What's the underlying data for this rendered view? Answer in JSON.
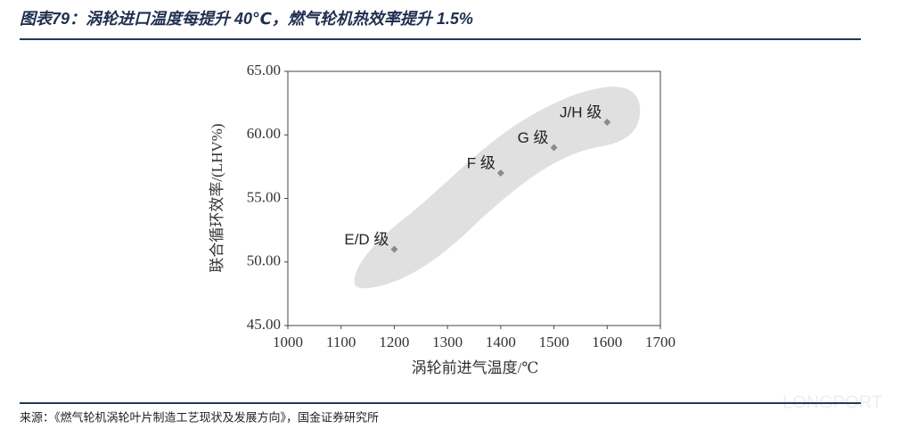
{
  "chart_data": {
    "type": "scatter",
    "title": "图表79：涡轮进口温度每提升 40℃，燃气轮机热效率提升 1.5%",
    "source": "来源：《燃气轮机涡轮叶片制造工艺现状及发展方向》，国金证券研究所",
    "watermark": "LONGPORT",
    "x_label": "涡轮前进气温度/℃",
    "y_label": "联合循环效率/(LHV%)",
    "x": [
      1200,
      1400,
      1500,
      1600
    ],
    "values": [
      51,
      57,
      59,
      61
    ],
    "point_labels": [
      "E/D 级",
      "F 级",
      "G 级",
      "J/H 级"
    ],
    "color": "#8a8a8a",
    "xlim": [
      1000,
      1700
    ],
    "xticks": [
      1000,
      1100,
      1200,
      1300,
      1400,
      1500,
      1600,
      1700
    ],
    "ylim": [
      45,
      65
    ],
    "yticks": [
      {
        "value": 45,
        "label": "45.00"
      },
      {
        "value": 50,
        "label": "50.00"
      },
      {
        "value": 55,
        "label": "55.00"
      },
      {
        "value": 60,
        "label": "60.00"
      },
      {
        "value": 65,
        "label": "65.00"
      }
    ]
  }
}
